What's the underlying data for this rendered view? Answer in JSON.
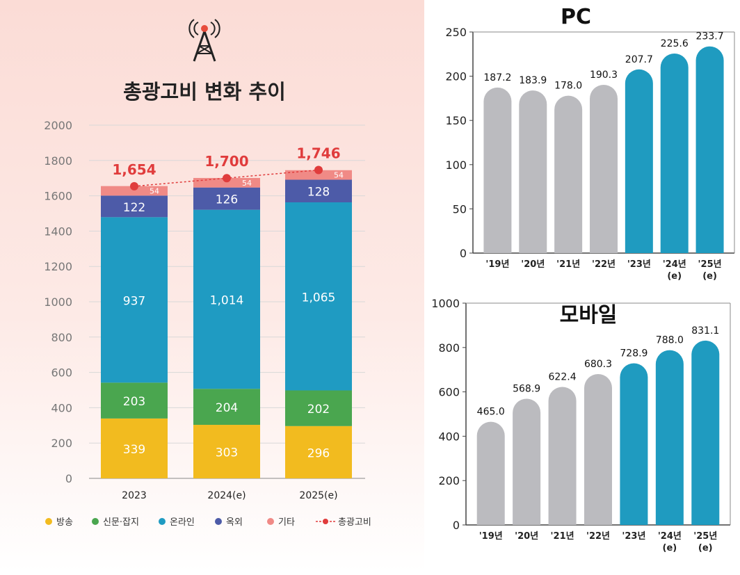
{
  "colors": {
    "broadcast": "#f2bb1f",
    "print": "#4aa64f",
    "online": "#1f9bc2",
    "outdoor": "#4d5ba8",
    "other": "#f08a86",
    "total": "#e03c3c",
    "gray_bar": "#bbbbbf",
    "teal_bar": "#1f9bc0",
    "axis_text": "#555555"
  },
  "left": {
    "title": "총광고비 변화 추이",
    "icon": "radio-tower-icon"
  },
  "right_top": {
    "title": "PC"
  },
  "right_bottom": {
    "title": "모바일"
  },
  "chart_data": [
    {
      "type": "bar",
      "stacked": true,
      "title": "총광고비 변화 추이",
      "categories": [
        "2023",
        "2024(e)",
        "2025(e)"
      ],
      "series": [
        {
          "name": "방송",
          "key": "broadcast",
          "values": [
            339,
            303,
            296
          ]
        },
        {
          "name": "신문·잡지",
          "key": "print",
          "values": [
            203,
            204,
            202
          ]
        },
        {
          "name": "온라인",
          "key": "online",
          "values": [
            937,
            1014,
            1065
          ]
        },
        {
          "name": "옥외",
          "key": "outdoor",
          "values": [
            122,
            126,
            128
          ]
        },
        {
          "name": "기타",
          "key": "other",
          "values": [
            54,
            54,
            54
          ]
        }
      ],
      "value_labels": {
        "broadcast": [
          "339",
          "303",
          "296"
        ],
        "print": [
          "203",
          "204",
          "202"
        ],
        "online": [
          "937",
          "1,014",
          "1,065"
        ],
        "outdoor": [
          "122",
          "126",
          "128"
        ],
        "other": [
          "54",
          "54",
          "54"
        ]
      },
      "total": {
        "name": "총광고비",
        "values": [
          1654,
          1700,
          1746
        ],
        "labels": [
          "1,654",
          "1,700",
          "1,746"
        ]
      },
      "ylim": [
        0,
        2000
      ],
      "yticks": [
        0,
        200,
        400,
        600,
        800,
        1000,
        1200,
        1400,
        1600,
        1800,
        2000
      ],
      "grid": true,
      "legend_position": "bottom"
    },
    {
      "type": "bar",
      "title": "PC",
      "categories": [
        "'19년",
        "'20년",
        "'21년",
        "'22년",
        "'23년",
        "'24년\n(e)",
        "'25년\n(e)"
      ],
      "values": [
        187.2,
        183.9,
        178.0,
        190.3,
        207.7,
        225.6,
        233.7
      ],
      "labels": [
        "187.2",
        "183.9",
        "178.0",
        "190.3",
        "207.7",
        "225.6",
        "233.7"
      ],
      "highlight": [
        false,
        false,
        false,
        false,
        true,
        true,
        true
      ],
      "ylim": [
        0,
        250
      ],
      "yticks": [
        0,
        50,
        100,
        150,
        200,
        250
      ]
    },
    {
      "type": "bar",
      "title": "모바일",
      "categories": [
        "'19년",
        "'20년",
        "'21년",
        "'22년",
        "'23년",
        "'24년\n(e)",
        "'25년\n(e)"
      ],
      "values": [
        465.0,
        568.9,
        622.4,
        680.3,
        728.9,
        788.0,
        831.1
      ],
      "labels": [
        "465.0",
        "568.9",
        "622.4",
        "680.3",
        "728.9",
        "788.0",
        "831.1"
      ],
      "highlight": [
        false,
        false,
        false,
        false,
        true,
        true,
        true
      ],
      "ylim": [
        0,
        1000
      ],
      "yticks": [
        0,
        200,
        400,
        600,
        800,
        1000
      ]
    }
  ]
}
